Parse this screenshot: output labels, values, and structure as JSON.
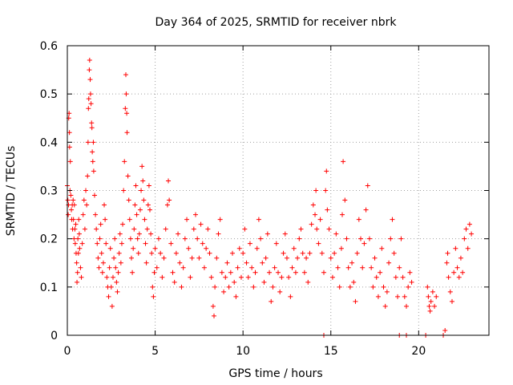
{
  "chart_data": {
    "type": "scatter",
    "title": "Day 364 of 2025, SRMTID for receiver nbrk",
    "xlabel": "GPS time / hours",
    "ylabel": "SRMTID / TECUs",
    "xlim": [
      0,
      24
    ],
    "ylim": [
      0,
      0.6
    ],
    "xticks": [
      0,
      5,
      10,
      15,
      20
    ],
    "yticks": [
      0,
      0.1,
      0.2,
      0.3,
      0.4,
      0.5,
      0.6
    ],
    "xtick_labels": [
      "0",
      "5",
      "10",
      "15",
      "20"
    ],
    "ytick_labels": [
      "0",
      "0.1",
      "0.2",
      "0.3",
      "0.4",
      "0.5",
      "0.6"
    ],
    "grid": true,
    "marker": "+",
    "color": "#ff0000",
    "series": [
      {
        "name": "SRMTID",
        "points": [
          [
            0.0,
            0.31
          ],
          [
            0.03,
            0.28
          ],
          [
            0.05,
            0.25
          ],
          [
            0.07,
            0.27
          ],
          [
            0.08,
            0.45
          ],
          [
            0.1,
            0.46
          ],
          [
            0.12,
            0.42
          ],
          [
            0.13,
            0.39
          ],
          [
            0.15,
            0.3
          ],
          [
            0.17,
            0.36
          ],
          [
            0.2,
            0.29
          ],
          [
            0.23,
            0.26
          ],
          [
            0.25,
            0.24
          ],
          [
            0.28,
            0.27
          ],
          [
            0.3,
            0.22
          ],
          [
            0.33,
            0.28
          ],
          [
            0.35,
            0.24
          ],
          [
            0.38,
            0.2
          ],
          [
            0.4,
            0.27
          ],
          [
            0.43,
            0.22
          ],
          [
            0.45,
            0.19
          ],
          [
            0.48,
            0.23
          ],
          [
            0.5,
            0.17
          ],
          [
            0.53,
            0.15
          ],
          [
            0.55,
            0.11
          ],
          [
            0.58,
            0.13
          ],
          [
            0.6,
            0.2
          ],
          [
            0.63,
            0.17
          ],
          [
            0.65,
            0.24
          ],
          [
            0.68,
            0.21
          ],
          [
            0.7,
            0.18
          ],
          [
            0.75,
            0.14
          ],
          [
            0.8,
            0.12
          ],
          [
            0.85,
            0.19
          ],
          [
            0.9,
            0.25
          ],
          [
            0.95,
            0.28
          ],
          [
            1.0,
            0.22
          ],
          [
            1.05,
            0.3
          ],
          [
            1.1,
            0.27
          ],
          [
            1.15,
            0.33
          ],
          [
            1.18,
            0.4
          ],
          [
            1.2,
            0.47
          ],
          [
            1.22,
            0.49
          ],
          [
            1.25,
            0.55
          ],
          [
            1.27,
            0.57
          ],
          [
            1.3,
            0.53
          ],
          [
            1.32,
            0.5
          ],
          [
            1.35,
            0.48
          ],
          [
            1.38,
            0.44
          ],
          [
            1.4,
            0.43
          ],
          [
            1.42,
            0.38
          ],
          [
            1.45,
            0.36
          ],
          [
            1.48,
            0.4
          ],
          [
            1.5,
            0.34
          ],
          [
            1.55,
            0.29
          ],
          [
            1.6,
            0.25
          ],
          [
            1.65,
            0.22
          ],
          [
            1.7,
            0.19
          ],
          [
            1.75,
            0.16
          ],
          [
            1.8,
            0.14
          ],
          [
            1.85,
            0.2
          ],
          [
            1.9,
            0.23
          ],
          [
            1.95,
            0.17
          ],
          [
            2.0,
            0.13
          ],
          [
            2.05,
            0.15
          ],
          [
            2.1,
            0.27
          ],
          [
            2.15,
            0.24
          ],
          [
            2.2,
            0.19
          ],
          [
            2.25,
            0.12
          ],
          [
            2.3,
            0.1
          ],
          [
            2.35,
            0.08
          ],
          [
            2.4,
            0.14
          ],
          [
            2.45,
            0.18
          ],
          [
            2.5,
            0.1
          ],
          [
            2.55,
            0.06
          ],
          [
            2.6,
            0.12
          ],
          [
            2.65,
            0.16
          ],
          [
            2.7,
            0.2
          ],
          [
            2.75,
            0.14
          ],
          [
            2.8,
            0.11
          ],
          [
            2.85,
            0.09
          ],
          [
            2.9,
            0.13
          ],
          [
            2.95,
            0.17
          ],
          [
            3.0,
            0.21
          ],
          [
            3.05,
            0.15
          ],
          [
            3.1,
            0.19
          ],
          [
            3.15,
            0.23
          ],
          [
            3.2,
            0.3
          ],
          [
            3.25,
            0.36
          ],
          [
            3.3,
            0.47
          ],
          [
            3.33,
            0.54
          ],
          [
            3.35,
            0.5
          ],
          [
            3.38,
            0.46
          ],
          [
            3.4,
            0.42
          ],
          [
            3.45,
            0.33
          ],
          [
            3.5,
            0.28
          ],
          [
            3.55,
            0.24
          ],
          [
            3.6,
            0.2
          ],
          [
            3.65,
            0.16
          ],
          [
            3.7,
            0.13
          ],
          [
            3.75,
            0.18
          ],
          [
            3.8,
            0.22
          ],
          [
            3.85,
            0.27
          ],
          [
            3.9,
            0.31
          ],
          [
            3.95,
            0.25
          ],
          [
            4.0,
            0.2
          ],
          [
            4.05,
            0.17
          ],
          [
            4.1,
            0.21
          ],
          [
            4.15,
            0.26
          ],
          [
            4.2,
            0.3
          ],
          [
            4.25,
            0.35
          ],
          [
            4.3,
            0.32
          ],
          [
            4.35,
            0.28
          ],
          [
            4.4,
            0.24
          ],
          [
            4.45,
            0.19
          ],
          [
            4.5,
            0.15
          ],
          [
            4.55,
            0.22
          ],
          [
            4.6,
            0.27
          ],
          [
            4.65,
            0.31
          ],
          [
            4.7,
            0.26
          ],
          [
            4.75,
            0.21
          ],
          [
            4.8,
            0.17
          ],
          [
            4.85,
            0.1
          ],
          [
            4.9,
            0.08
          ],
          [
            4.95,
            0.13
          ],
          [
            5.0,
            0.18
          ],
          [
            5.1,
            0.14
          ],
          [
            5.2,
            0.2
          ],
          [
            5.3,
            0.17
          ],
          [
            5.4,
            0.12
          ],
          [
            5.5,
            0.16
          ],
          [
            5.6,
            0.22
          ],
          [
            5.7,
            0.27
          ],
          [
            5.75,
            0.32
          ],
          [
            5.8,
            0.28
          ],
          [
            5.9,
            0.19
          ],
          [
            6.0,
            0.13
          ],
          [
            6.1,
            0.11
          ],
          [
            6.2,
            0.17
          ],
          [
            6.3,
            0.21
          ],
          [
            6.4,
            0.15
          ],
          [
            6.5,
            0.1
          ],
          [
            6.6,
            0.14
          ],
          [
            6.7,
            0.2
          ],
          [
            6.8,
            0.24
          ],
          [
            6.9,
            0.18
          ],
          [
            7.0,
            0.12
          ],
          [
            7.1,
            0.16
          ],
          [
            7.2,
            0.22
          ],
          [
            7.3,
            0.25
          ],
          [
            7.4,
            0.2
          ],
          [
            7.5,
            0.16
          ],
          [
            7.6,
            0.23
          ],
          [
            7.7,
            0.19
          ],
          [
            7.8,
            0.14
          ],
          [
            7.9,
            0.18
          ],
          [
            8.0,
            0.22
          ],
          [
            8.1,
            0.17
          ],
          [
            8.2,
            0.12
          ],
          [
            8.3,
            0.06
          ],
          [
            8.35,
            0.04
          ],
          [
            8.4,
            0.1
          ],
          [
            8.5,
            0.16
          ],
          [
            8.6,
            0.21
          ],
          [
            8.7,
            0.24
          ],
          [
            8.8,
            0.13
          ],
          [
            8.9,
            0.09
          ],
          [
            9.0,
            0.12
          ],
          [
            9.1,
            0.15
          ],
          [
            9.2,
            0.1
          ],
          [
            9.3,
            0.13
          ],
          [
            9.4,
            0.17
          ],
          [
            9.5,
            0.11
          ],
          [
            9.6,
            0.08
          ],
          [
            9.7,
            0.14
          ],
          [
            9.8,
            0.18
          ],
          [
            9.9,
            0.12
          ],
          [
            10.0,
            0.17
          ],
          [
            10.1,
            0.22
          ],
          [
            10.2,
            0.15
          ],
          [
            10.3,
            0.12
          ],
          [
            10.4,
            0.19
          ],
          [
            10.5,
            0.14
          ],
          [
            10.6,
            0.1
          ],
          [
            10.7,
            0.13
          ],
          [
            10.8,
            0.18
          ],
          [
            10.9,
            0.24
          ],
          [
            11.0,
            0.2
          ],
          [
            11.1,
            0.15
          ],
          [
            11.2,
            0.11
          ],
          [
            11.3,
            0.16
          ],
          [
            11.4,
            0.21
          ],
          [
            11.5,
            0.13
          ],
          [
            11.6,
            0.07
          ],
          [
            11.7,
            0.1
          ],
          [
            11.8,
            0.14
          ],
          [
            11.9,
            0.19
          ],
          [
            12.0,
            0.13
          ],
          [
            12.1,
            0.09
          ],
          [
            12.2,
            0.12
          ],
          [
            12.3,
            0.17
          ],
          [
            12.4,
            0.21
          ],
          [
            12.5,
            0.16
          ],
          [
            12.6,
            0.12
          ],
          [
            12.7,
            0.08
          ],
          [
            12.8,
            0.14
          ],
          [
            12.9,
            0.18
          ],
          [
            13.0,
            0.13
          ],
          [
            13.1,
            0.16
          ],
          [
            13.2,
            0.2
          ],
          [
            13.3,
            0.22
          ],
          [
            13.4,
            0.17
          ],
          [
            13.5,
            0.13
          ],
          [
            13.6,
            0.16
          ],
          [
            13.7,
            0.11
          ],
          [
            13.8,
            0.17
          ],
          [
            13.9,
            0.23
          ],
          [
            14.0,
            0.27
          ],
          [
            14.1,
            0.25
          ],
          [
            14.15,
            0.3
          ],
          [
            14.2,
            0.22
          ],
          [
            14.3,
            0.19
          ],
          [
            14.4,
            0.24
          ],
          [
            14.5,
            0.17
          ],
          [
            14.6,
            0.13
          ],
          [
            14.7,
            0.3
          ],
          [
            14.75,
            0.34
          ],
          [
            14.8,
            0.26
          ],
          [
            14.9,
            0.22
          ],
          [
            15.0,
            0.16
          ],
          [
            15.1,
            0.12
          ],
          [
            15.2,
            0.17
          ],
          [
            15.3,
            0.21
          ],
          [
            15.4,
            0.14
          ],
          [
            15.5,
            0.1
          ],
          [
            15.6,
            0.18
          ],
          [
            15.65,
            0.25
          ],
          [
            15.7,
            0.36
          ],
          [
            15.8,
            0.28
          ],
          [
            15.9,
            0.2
          ],
          [
            16.0,
            0.14
          ],
          [
            16.1,
            0.1
          ],
          [
            16.2,
            0.15
          ],
          [
            16.3,
            0.11
          ],
          [
            16.4,
            0.07
          ],
          [
            16.5,
            0.17
          ],
          [
            16.6,
            0.24
          ],
          [
            16.7,
            0.2
          ],
          [
            16.8,
            0.14
          ],
          [
            16.9,
            0.19
          ],
          [
            17.0,
            0.26
          ],
          [
            17.1,
            0.31
          ],
          [
            17.2,
            0.2
          ],
          [
            17.3,
            0.14
          ],
          [
            17.4,
            0.1
          ],
          [
            17.5,
            0.16
          ],
          [
            17.6,
            0.12
          ],
          [
            17.7,
            0.08
          ],
          [
            17.8,
            0.13
          ],
          [
            17.9,
            0.18
          ],
          [
            18.0,
            0.1
          ],
          [
            18.1,
            0.06
          ],
          [
            18.2,
            0.09
          ],
          [
            18.3,
            0.15
          ],
          [
            18.4,
            0.2
          ],
          [
            18.5,
            0.24
          ],
          [
            18.6,
            0.17
          ],
          [
            18.7,
            0.12
          ],
          [
            18.8,
            0.08
          ],
          [
            18.9,
            0.14
          ],
          [
            19.0,
            0.2
          ],
          [
            19.1,
            0.12
          ],
          [
            19.2,
            0.08
          ],
          [
            19.3,
            0.06
          ],
          [
            19.4,
            0.1
          ],
          [
            19.5,
            0.13
          ],
          [
            19.6,
            0.11
          ],
          [
            20.5,
            0.1
          ],
          [
            20.55,
            0.08
          ],
          [
            20.6,
            0.06
          ],
          [
            20.65,
            0.05
          ],
          [
            20.7,
            0.07
          ],
          [
            20.8,
            0.09
          ],
          [
            20.9,
            0.06
          ],
          [
            21.0,
            0.08
          ],
          [
            21.5,
            0.01
          ],
          [
            21.6,
            0.15
          ],
          [
            21.65,
            0.17
          ],
          [
            21.7,
            0.12
          ],
          [
            21.8,
            0.09
          ],
          [
            21.9,
            0.07
          ],
          [
            22.0,
            0.13
          ],
          [
            22.1,
            0.18
          ],
          [
            22.2,
            0.14
          ],
          [
            22.3,
            0.12
          ],
          [
            22.4,
            0.16
          ],
          [
            22.5,
            0.13
          ],
          [
            22.6,
            0.2
          ],
          [
            22.7,
            0.22
          ],
          [
            22.8,
            0.18
          ],
          [
            22.9,
            0.23
          ],
          [
            23.0,
            0.21
          ],
          [
            14.6,
            0.0
          ],
          [
            18.9,
            0.0
          ],
          [
            19.3,
            0.0
          ],
          [
            20.4,
            0.0
          ],
          [
            21.4,
            0.0
          ]
        ]
      }
    ]
  }
}
